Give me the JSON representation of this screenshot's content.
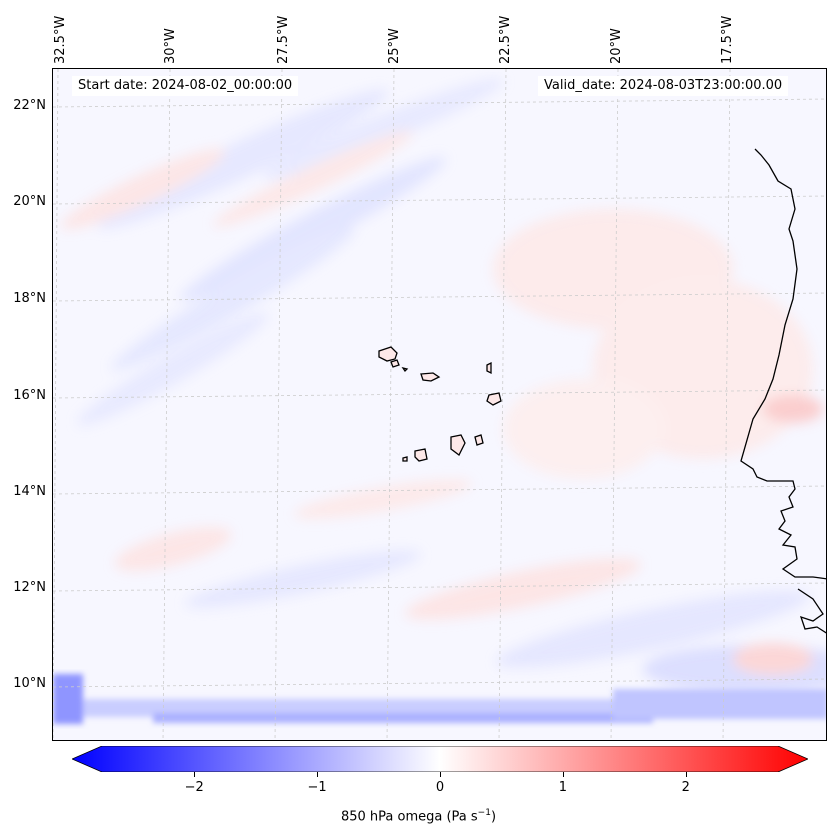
{
  "map": {
    "start_date": "Start date: 2024-08-02_00:00:00",
    "valid_date": "Valid_date: 2024-08-03T23:00:00.00",
    "lon_labels": [
      "32.5°W",
      "30°W",
      "27.5°W",
      "25°W",
      "22.5°W",
      "20°W",
      "17.5°W"
    ],
    "lat_labels": [
      "22°N",
      "20°N",
      "18°N",
      "16°N",
      "14°N",
      "12°N",
      "10°N"
    ]
  },
  "colorbar": {
    "label": "850 hPa omega (Pa s",
    "label_sup": "−1",
    "label_close": ")",
    "ticks": [
      "−2",
      "−1",
      "0",
      "1",
      "2"
    ],
    "range": [
      -2.75,
      2.75
    ],
    "tick_values": [
      -2,
      -1,
      0,
      1,
      2
    ],
    "colors": {
      "negative": "#0000ff",
      "neutral": "#ffffff",
      "positive": "#ff0000"
    }
  }
}
